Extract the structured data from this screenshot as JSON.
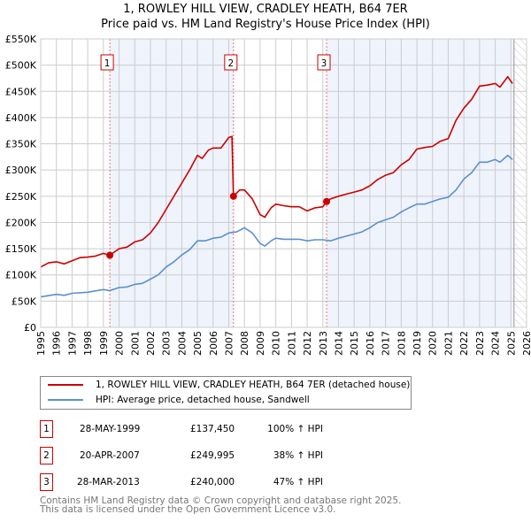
{
  "title": "1, ROWLEY HILL VIEW, CRADLEY HEATH, B64 7ER",
  "subtitle": "Price paid vs. HM Land Registry's House Price Index (HPI)",
  "colors": {
    "property": "#cc0000",
    "hpi": "#5b8fd0",
    "shade": "#eef3fc",
    "grid": "#cccccc"
  },
  "chart_data": {
    "type": "line",
    "xlim": [
      1995,
      2026
    ],
    "ylim": [
      0,
      550000
    ],
    "x_ticks": [
      "1995",
      "1996",
      "1997",
      "1998",
      "1999",
      "2000",
      "2001",
      "2002",
      "2003",
      "2004",
      "2005",
      "2006",
      "2007",
      "2008",
      "2009",
      "2010",
      "2011",
      "2012",
      "2013",
      "2014",
      "2015",
      "2016",
      "2017",
      "2018",
      "2019",
      "2020",
      "2021",
      "2022",
      "2023",
      "2024",
      "2025",
      "2026"
    ],
    "y_ticks": [
      {
        "v": 0,
        "label": "£0"
      },
      {
        "v": 50000,
        "label": "£50K"
      },
      {
        "v": 100000,
        "label": "£100K"
      },
      {
        "v": 150000,
        "label": "£150K"
      },
      {
        "v": 200000,
        "label": "£200K"
      },
      {
        "v": 250000,
        "label": "£250K"
      },
      {
        "v": 300000,
        "label": "£300K"
      },
      {
        "v": 350000,
        "label": "£350K"
      },
      {
        "v": 400000,
        "label": "£400K"
      },
      {
        "v": 450000,
        "label": "£450K"
      },
      {
        "v": 500000,
        "label": "£500K"
      },
      {
        "v": 550000,
        "label": "£550K"
      }
    ],
    "grid": true,
    "shaded_ranges": [
      [
        1999.41,
        2007.3
      ],
      [
        2013.24,
        2025.2
      ]
    ],
    "forecast_hatch_from": 2025.2,
    "series": [
      {
        "name": "1, ROWLEY HILL VIEW, CRADLEY HEATH, B64 7ER (detached house)",
        "color": "#cc0000",
        "points": [
          [
            1995,
            115
          ],
          [
            1995.5,
            123
          ],
          [
            1996,
            125
          ],
          [
            1996.5,
            121
          ],
          [
            1997,
            127
          ],
          [
            1997.5,
            133
          ],
          [
            1998,
            134
          ],
          [
            1998.5,
            136
          ],
          [
            1999,
            141
          ],
          [
            1999.41,
            137.45
          ],
          [
            2000,
            150
          ],
          [
            2000.5,
            153
          ],
          [
            2001,
            163
          ],
          [
            2001.5,
            167
          ],
          [
            2002,
            180
          ],
          [
            2002.5,
            200
          ],
          [
            2003,
            225
          ],
          [
            2003.5,
            250
          ],
          [
            2004,
            275
          ],
          [
            2004.5,
            300
          ],
          [
            2005,
            328
          ],
          [
            2005.3,
            322
          ],
          [
            2005.7,
            338
          ],
          [
            2006,
            342
          ],
          [
            2006.5,
            342
          ],
          [
            2007,
            362
          ],
          [
            2007.2,
            364
          ],
          [
            2007.3,
            250
          ],
          [
            2007.7,
            262
          ],
          [
            2008,
            262
          ],
          [
            2008.5,
            245
          ],
          [
            2009,
            215
          ],
          [
            2009.3,
            210
          ],
          [
            2009.7,
            228
          ],
          [
            2010,
            235
          ],
          [
            2010.5,
            232
          ],
          [
            2011,
            230
          ],
          [
            2011.5,
            230
          ],
          [
            2012,
            222
          ],
          [
            2012.5,
            228
          ],
          [
            2013,
            230
          ],
          [
            2013.24,
            240
          ],
          [
            2013.5,
            245
          ],
          [
            2014,
            250
          ],
          [
            2014.5,
            254
          ],
          [
            2015,
            258
          ],
          [
            2015.5,
            262
          ],
          [
            2016,
            270
          ],
          [
            2016.5,
            282
          ],
          [
            2017,
            290
          ],
          [
            2017.5,
            295
          ],
          [
            2018,
            310
          ],
          [
            2018.5,
            320
          ],
          [
            2019,
            340
          ],
          [
            2019.5,
            343
          ],
          [
            2020,
            345
          ],
          [
            2020.5,
            355
          ],
          [
            2021,
            360
          ],
          [
            2021.5,
            395
          ],
          [
            2022,
            418
          ],
          [
            2022.5,
            435
          ],
          [
            2023,
            460
          ],
          [
            2023.5,
            462
          ],
          [
            2024,
            465
          ],
          [
            2024.3,
            458
          ],
          [
            2024.8,
            478
          ],
          [
            2025.1,
            465
          ]
        ]
      },
      {
        "name": "HPI: Average price, detached house, Sandwell",
        "color": "#5b8fd0",
        "points": [
          [
            1995,
            58
          ],
          [
            1996,
            63
          ],
          [
            1996.5,
            61
          ],
          [
            1997,
            65
          ],
          [
            1998,
            67
          ],
          [
            1999,
            72
          ],
          [
            1999.4,
            70
          ],
          [
            2000,
            76
          ],
          [
            2000.5,
            77
          ],
          [
            2001,
            82
          ],
          [
            2001.5,
            84
          ],
          [
            2002,
            92
          ],
          [
            2002.5,
            100
          ],
          [
            2003,
            115
          ],
          [
            2003.5,
            125
          ],
          [
            2004,
            138
          ],
          [
            2004.5,
            148
          ],
          [
            2005,
            165
          ],
          [
            2005.5,
            165
          ],
          [
            2006,
            170
          ],
          [
            2006.5,
            172
          ],
          [
            2007,
            180
          ],
          [
            2007.5,
            182
          ],
          [
            2008,
            190
          ],
          [
            2008.5,
            180
          ],
          [
            2009,
            160
          ],
          [
            2009.3,
            155
          ],
          [
            2009.7,
            165
          ],
          [
            2010,
            170
          ],
          [
            2010.5,
            168
          ],
          [
            2011,
            168
          ],
          [
            2011.5,
            168
          ],
          [
            2012,
            165
          ],
          [
            2012.5,
            167
          ],
          [
            2013,
            167
          ],
          [
            2013.5,
            165
          ],
          [
            2014,
            170
          ],
          [
            2014.5,
            174
          ],
          [
            2015,
            178
          ],
          [
            2015.5,
            182
          ],
          [
            2016,
            190
          ],
          [
            2016.5,
            200
          ],
          [
            2017,
            205
          ],
          [
            2017.5,
            210
          ],
          [
            2018,
            220
          ],
          [
            2018.5,
            228
          ],
          [
            2019,
            235
          ],
          [
            2019.5,
            235
          ],
          [
            2020,
            240
          ],
          [
            2020.5,
            245
          ],
          [
            2021,
            248
          ],
          [
            2021.5,
            262
          ],
          [
            2022,
            283
          ],
          [
            2022.5,
            295
          ],
          [
            2023,
            315
          ],
          [
            2023.5,
            315
          ],
          [
            2024,
            320
          ],
          [
            2024.3,
            315
          ],
          [
            2024.8,
            328
          ],
          [
            2025.1,
            320
          ]
        ]
      }
    ],
    "y_units_note_k": 1000,
    "sales": [
      {
        "label": "1",
        "x": 1999.41,
        "y": 137450
      },
      {
        "label": "2",
        "x": 2007.3,
        "y": 249995
      },
      {
        "label": "3",
        "x": 2013.24,
        "y": 240000
      }
    ]
  },
  "legend": {
    "property": "1, ROWLEY HILL VIEW, CRADLEY HEATH, B64 7ER (detached house)",
    "hpi": "HPI: Average price, detached house, Sandwell"
  },
  "transactions": [
    {
      "num": "1",
      "date": "28-MAY-1999",
      "price": "£137,450",
      "hpi": "100% ↑ HPI"
    },
    {
      "num": "2",
      "date": "20-APR-2007",
      "price": "£249,995",
      "hpi": "38% ↑ HPI"
    },
    {
      "num": "3",
      "date": "28-MAR-2013",
      "price": "£240,000",
      "hpi": "47% ↑ HPI"
    }
  ],
  "footer": {
    "line1": "Contains HM Land Registry data © Crown copyright and database right 2025.",
    "line2": "This data is licensed under the Open Government Licence v3.0."
  }
}
